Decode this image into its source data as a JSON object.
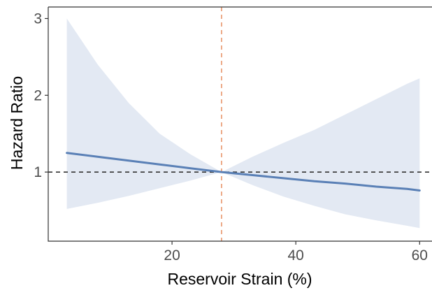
{
  "chart_data": {
    "type": "line",
    "xlabel": "Reservoir Strain (%)",
    "ylabel": "Hazard Ratio",
    "xlim": [
      0,
      62
    ],
    "ylim": [
      0.1,
      3.15
    ],
    "x_ticks": [
      20,
      40,
      60
    ],
    "y_ticks": [
      1,
      2,
      3
    ],
    "grid": false,
    "reference_lines": [
      {
        "axis": "y",
        "value": 1,
        "style": "dashed",
        "color": "#333333"
      },
      {
        "axis": "x",
        "value": 28,
        "style": "dashed",
        "color": "#e8956a"
      }
    ],
    "series": [
      {
        "x": [
          3,
          8,
          13,
          18,
          23,
          28,
          33,
          38,
          43,
          48,
          53,
          58,
          60
        ],
        "y": [
          1.25,
          1.2,
          1.15,
          1.1,
          1.05,
          1.0,
          0.96,
          0.92,
          0.88,
          0.85,
          0.81,
          0.78,
          0.76
        ],
        "lower": [
          0.52,
          0.6,
          0.69,
          0.79,
          0.89,
          1.0,
          0.83,
          0.68,
          0.56,
          0.45,
          0.37,
          0.3,
          0.27
        ],
        "upper": [
          3.0,
          2.4,
          1.9,
          1.5,
          1.23,
          1.0,
          1.2,
          1.38,
          1.55,
          1.75,
          1.95,
          2.15,
          2.22
        ]
      }
    ],
    "colors": {
      "line": "#5a80b6",
      "band": "#e3e9f3",
      "axis": "#333333"
    }
  }
}
